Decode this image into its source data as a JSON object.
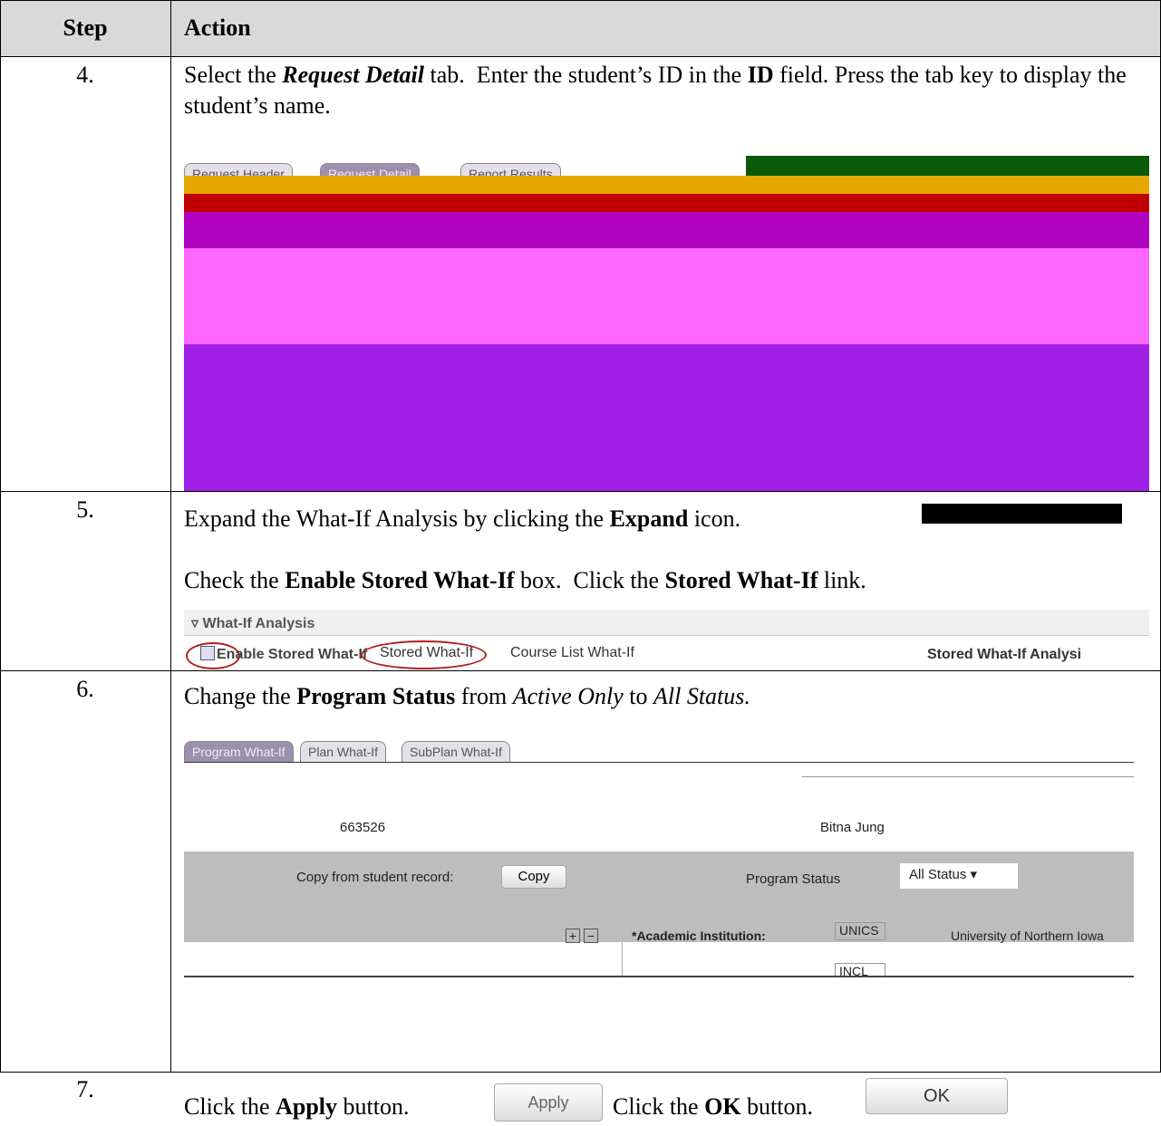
{
  "table": {
    "header": [
      "Step",
      "Action"
    ],
    "rows": [
      {
        "step": "4.",
        "text": [
          "Select the ",
          "Request Detail",
          " tab.  Enter the student’s ID in the ",
          "ID",
          " field. Press the tab key to display the student’s name."
        ],
        "screenshot": {
          "tabs": [
            "Request Header",
            "Request Detail",
            "Report Results"
          ]
        }
      },
      {
        "step": "5.",
        "text": [
          "Expand the What-If Analysis by clicking the ",
          "Expand",
          " icon."
        ],
        "text2": [
          "Check the ",
          "Enable Stored What-If",
          " box.  Click the ",
          "Stored What-If",
          " link."
        ],
        "screenshot": {
          "section": "What-If Analysis",
          "checkbox": "Enable Stored What-If",
          "link": "Stored What-If",
          "link2": "Course List What-If",
          "label": "Stored What-If Analysi"
        }
      },
      {
        "step": "6.",
        "text": [
          "Change the ",
          "Program Status",
          " from ",
          "Active Only",
          " to ",
          "All Status."
        ],
        "screenshot": {
          "tabs": [
            "Program What-If",
            "Plan What-If",
            "SubPlan What-If"
          ],
          "id": "663526",
          "name": "Bitna Jung",
          "copy_label": "Copy from student record:",
          "copy_button": "Copy",
          "status_label": "Program Status",
          "status_value": "All Status",
          "institution_label": "*Academic Institution:",
          "institution_code": "UNICS",
          "institution_name": "University of Northern Iowa",
          "status_code": "INCL"
        }
      },
      {
        "step": "7.",
        "text": [
          "Click the ",
          "Apply",
          " button. "
        ],
        "apply": "Apply",
        "text2": [
          "Click the ",
          "OK",
          " button. "
        ],
        "ok": "OK"
      }
    ]
  }
}
